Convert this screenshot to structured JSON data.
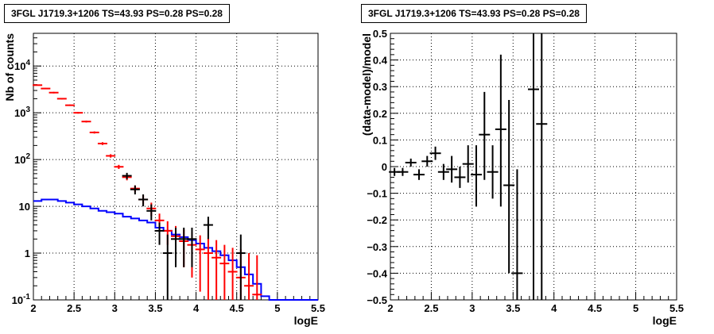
{
  "chart_data": [
    {
      "type": "line",
      "title": "3FGL J1719.3+1206 TS=43.93 PS=0.28 PS=0.28",
      "xlabel": "logE",
      "ylabel": "Nb of counts",
      "xlim": [
        2,
        5.5
      ],
      "ylim": [
        0.1,
        50000
      ],
      "yscale": "log",
      "grid": true,
      "xticks": [
        "2",
        "2.5",
        "3",
        "3.5",
        "4",
        "4.5",
        "5",
        "5.5"
      ],
      "yticks": [
        "10^-1",
        "1",
        "10",
        "10^2",
        "10^3",
        "10^4"
      ],
      "bin_edges": [
        2.0,
        2.1,
        2.2,
        2.3,
        2.4,
        2.5,
        2.6,
        2.7,
        2.8,
        2.9,
        3.0,
        3.1,
        3.2,
        3.3,
        3.4,
        3.5,
        3.6,
        3.7,
        3.8,
        3.9,
        4.0,
        4.1,
        4.2,
        4.3,
        4.4,
        4.5,
        4.6,
        4.7,
        4.8,
        4.9,
        5.0,
        5.1,
        5.2,
        5.3,
        5.4,
        5.5
      ],
      "series": [
        {
          "color": "#0000ff",
          "style": "step",
          "values": [
            13,
            14,
            14,
            13,
            12,
            11,
            10,
            9,
            8,
            7.5,
            7,
            6,
            5.5,
            5,
            4.5,
            3.5,
            3,
            2.5,
            2.2,
            1.9,
            1.6,
            1.3,
            1.1,
            0.9,
            0.7,
            0.5,
            0.35,
            0.22,
            0.12,
            0.1,
            0.1,
            0.1,
            0.1,
            0.1,
            0.1
          ]
        },
        {
          "color": "#ff0000",
          "style": "errorbar",
          "x": [
            2.05,
            2.15,
            2.25,
            2.35,
            2.45,
            2.55,
            2.65,
            2.75,
            2.85,
            2.95,
            3.05,
            3.15,
            3.25,
            3.35,
            3.45,
            3.55,
            3.65,
            3.75,
            3.85,
            3.95,
            4.05,
            4.15,
            4.25,
            4.35,
            4.45,
            4.55,
            4.65,
            4.75
          ],
          "y": [
            3900,
            3300,
            2700,
            2000,
            1450,
            1000,
            650,
            380,
            220,
            120,
            70,
            42,
            24,
            14,
            9,
            5,
            3,
            2.3,
            1.8,
            1.5,
            1.2,
            1.0,
            0.8,
            0.6,
            0.4,
            0.3,
            0.2,
            0.13
          ],
          "ylo": [
            3800,
            3200,
            2600,
            1930,
            1400,
            960,
            620,
            360,
            205,
            110,
            63,
            36,
            20,
            11,
            6.2,
            3.2,
            1.5,
            0.9,
            0.5,
            0.3,
            0.15,
            0.1,
            0.1,
            0.1,
            0.1,
            0.1,
            0.1,
            0.1
          ],
          "yhi": [
            4000,
            3400,
            2800,
            2070,
            1500,
            1040,
            680,
            400,
            235,
            130,
            77,
            48,
            28,
            17,
            12,
            7,
            4.8,
            3.8,
            3.2,
            2.8,
            2.4,
            2.1,
            1.9,
            1.5,
            1.3,
            1.2,
            1.0,
            0.9
          ]
        },
        {
          "color": "#000000",
          "style": "errorbar",
          "x": [
            3.15,
            3.25,
            3.35,
            3.45,
            3.55,
            3.65,
            3.75,
            3.85,
            3.95,
            4.15,
            4.55
          ],
          "y": [
            45,
            23,
            14,
            8,
            3,
            1,
            2,
            2,
            2,
            4,
            1
          ],
          "ylo": [
            38,
            18,
            10,
            5,
            1.5,
            0.1,
            0.5,
            0.5,
            0.5,
            2,
            0.1
          ],
          "yhi": [
            52,
            28,
            18,
            11,
            4.5,
            2.5,
            3.5,
            3.5,
            3.5,
            6,
            2.5
          ]
        }
      ]
    },
    {
      "type": "scatter",
      "title": "3FGL J1719.3+1206 TS=43.93 PS=0.28 PS=0.28",
      "xlabel": "logE",
      "ylabel": "(data-model)/model",
      "xlim": [
        2,
        5.5
      ],
      "ylim": [
        -0.5,
        0.5
      ],
      "grid": true,
      "xticks": [
        "2",
        "2.5",
        "3",
        "3.5",
        "4",
        "4.5",
        "5",
        "5.5"
      ],
      "yticks": [
        "−0.5",
        "−0.4",
        "−0.3",
        "−0.2",
        "−0.1",
        "0",
        "0.1",
        "0.2",
        "0.3",
        "0.4",
        "0.5"
      ],
      "series": [
        {
          "color": "#000000",
          "style": "errorbar",
          "x": [
            2.05,
            2.15,
            2.25,
            2.35,
            2.45,
            2.55,
            2.65,
            2.75,
            2.85,
            2.95,
            3.05,
            3.15,
            3.25,
            3.35,
            3.45,
            3.55,
            3.75,
            3.85
          ],
          "y": [
            -0.02,
            -0.02,
            0.015,
            -0.03,
            0.02,
            0.05,
            -0.02,
            -0.01,
            -0.04,
            0.01,
            -0.03,
            0.12,
            -0.02,
            0.14,
            -0.07,
            -0.4,
            0.29,
            0.16
          ],
          "ylo": [
            -0.035,
            -0.035,
            0.0,
            -0.05,
            0.0,
            0.025,
            -0.05,
            -0.06,
            -0.08,
            -0.06,
            -0.15,
            -0.05,
            -0.12,
            -0.15,
            -0.4,
            -0.5,
            -0.5,
            -0.5
          ],
          "yhi": [
            -0.005,
            -0.005,
            0.03,
            -0.01,
            0.04,
            0.075,
            0.01,
            0.04,
            0.0,
            0.08,
            0.08,
            0.28,
            0.08,
            0.42,
            0.25,
            -0.01,
            0.5,
            0.5
          ]
        }
      ]
    }
  ]
}
